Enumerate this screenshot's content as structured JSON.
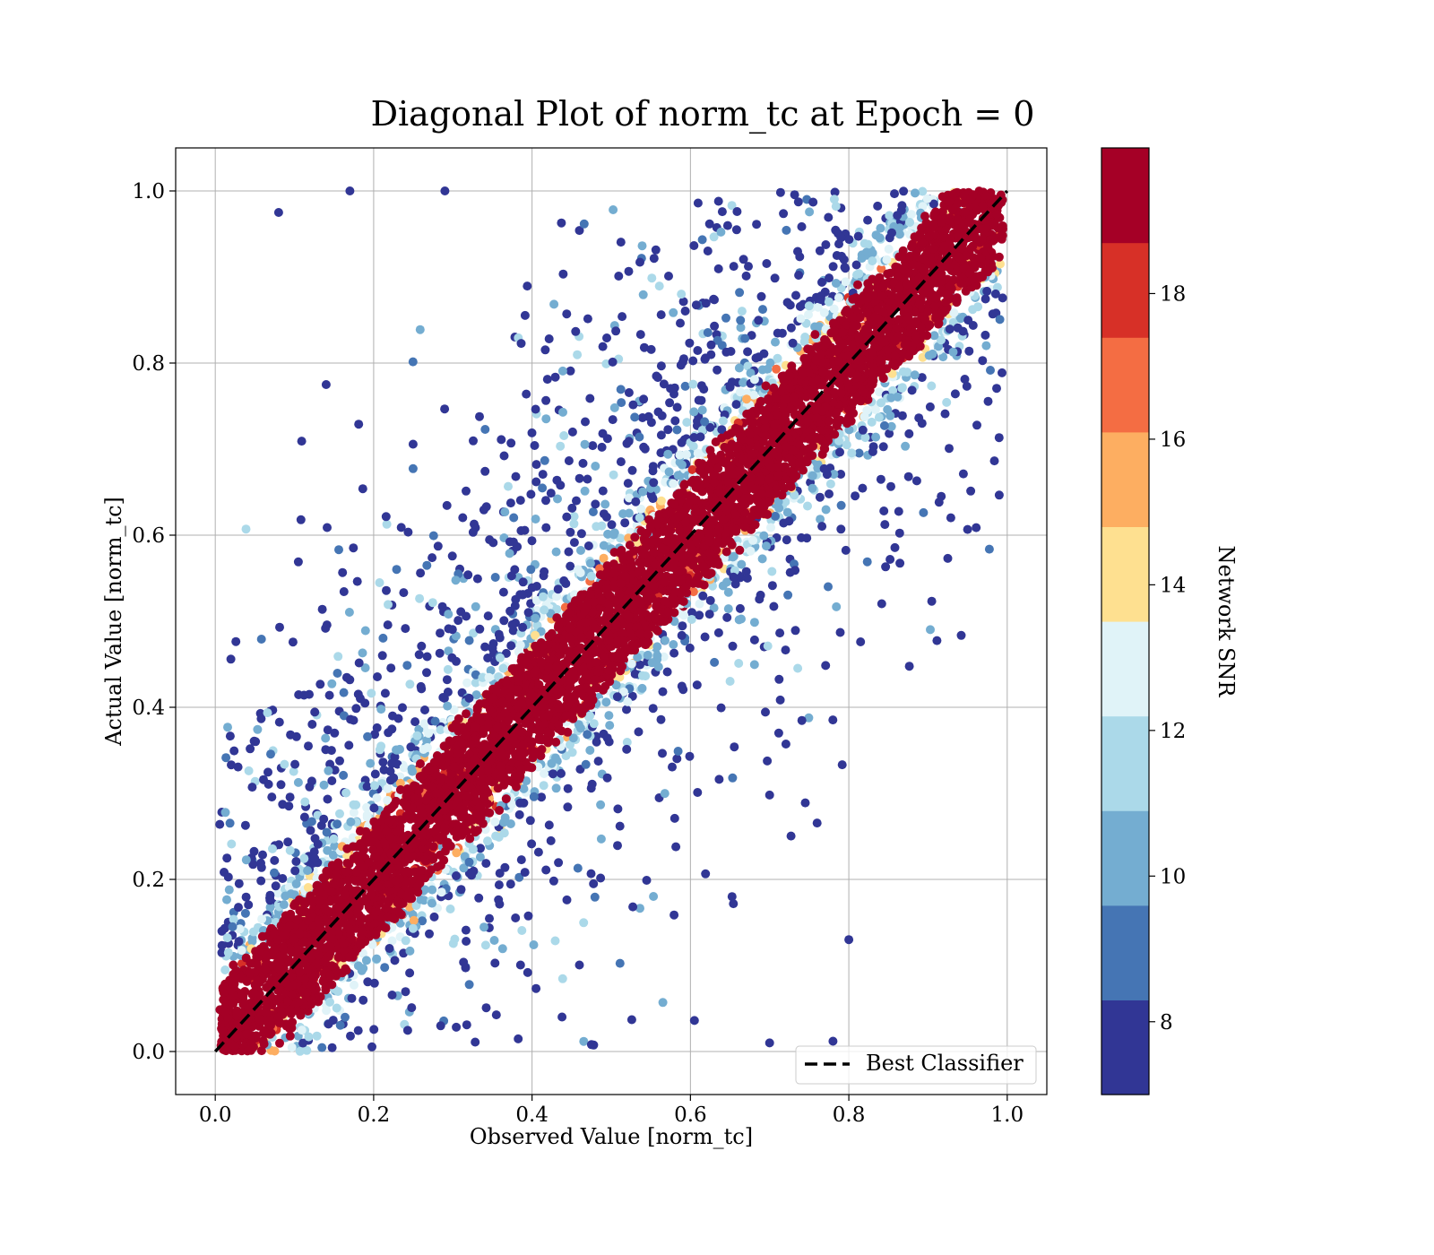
{
  "chart_data": {
    "type": "scatter",
    "title": "Diagonal Plot of norm_tc at Epoch = 0",
    "xlabel": "Observed Value [norm_tc]",
    "ylabel": "Actual Value [norm_tc]",
    "xlim": [
      -0.05,
      1.05
    ],
    "ylim": [
      -0.05,
      1.05
    ],
    "xticks": [
      "0.0",
      "0.2",
      "0.4",
      "0.6",
      "0.8",
      "1.0"
    ],
    "yticks": [
      "0.0",
      "0.2",
      "0.4",
      "0.6",
      "0.8",
      "1.0"
    ],
    "grid": true,
    "legend": {
      "placement": "lower-right",
      "entries": [
        {
          "label": "Best Classifier",
          "style": "dashed",
          "color": "#000000"
        }
      ]
    },
    "reference_line": {
      "x": [
        0,
        1
      ],
      "y": [
        0,
        1
      ],
      "style": "dashed",
      "color": "#000000"
    },
    "colorbar": {
      "label": "Network SNR",
      "range": [
        7,
        20
      ],
      "ticks": [
        "8",
        "10",
        "12",
        "14",
        "16",
        "18"
      ],
      "colors": [
        "#313695",
        "#4575b4",
        "#74add1",
        "#abd9e9",
        "#e0f3f8",
        "#fee090",
        "#fdae61",
        "#f46d43",
        "#d73027",
        "#a50026"
      ]
    },
    "point_distribution": {
      "high_snr_band_halfwidth": 0.07,
      "scatter_spread": 0.35,
      "outlier_examples": [
        {
          "x": 0.08,
          "y": 0.975
        },
        {
          "x": 0.17,
          "y": 1.0
        },
        {
          "x": 0.29,
          "y": 1.0
        },
        {
          "x": 0.14,
          "y": 0.775
        },
        {
          "x": 0.925,
          "y": 0.573
        },
        {
          "x": 0.7,
          "y": 0.298
        },
        {
          "x": 0.745,
          "y": 0.289
        },
        {
          "x": 0.8,
          "y": 0.13
        },
        {
          "x": 0.78,
          "y": 0.012
        },
        {
          "x": 0.7,
          "y": 0.01
        },
        {
          "x": 0.605,
          "y": 0.036
        },
        {
          "x": 0.475,
          "y": 0.008
        }
      ]
    }
  }
}
